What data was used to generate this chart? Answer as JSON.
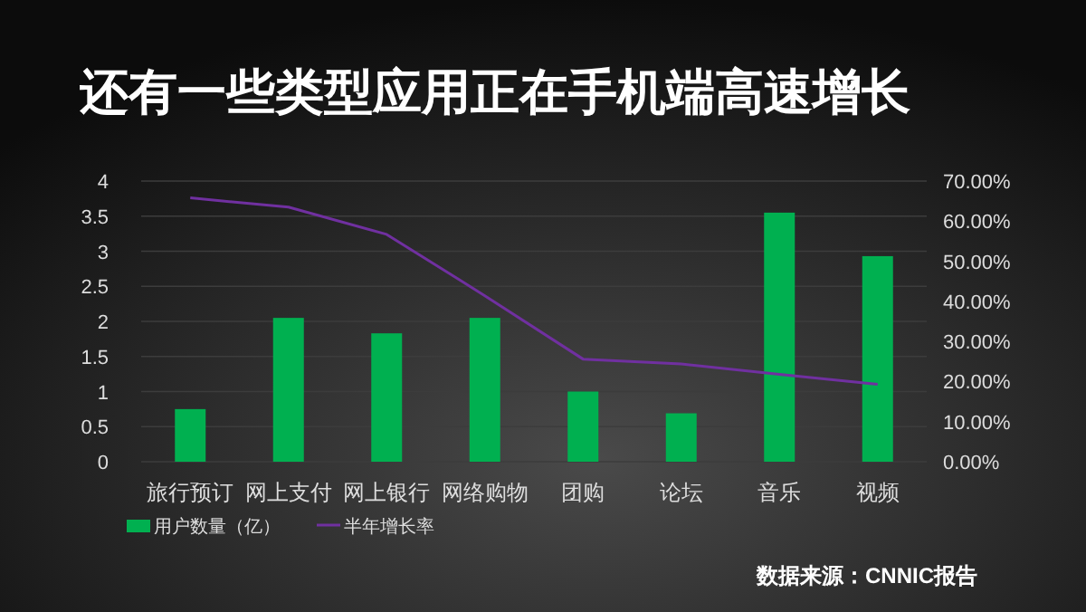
{
  "chart_data": {
    "type": "bar",
    "title": "还有一些类型应用正在手机端高速增长",
    "categories": [
      "旅行预订",
      "网上支付",
      "网上银行",
      "网络购物",
      "团购",
      "论坛",
      "音乐",
      "视频"
    ],
    "series": [
      {
        "name": "用户数量（亿）",
        "color": "#00b050",
        "values": [
          0.75,
          2.05,
          1.83,
          2.05,
          1.0,
          0.69,
          3.55,
          2.93
        ]
      },
      {
        "name": "半年增长率",
        "type": "line",
        "axis": "y2",
        "color": "#7030a0",
        "values": [
          65.8,
          63.5,
          56.7,
          41.4,
          25.6,
          24.4,
          21.8,
          19.3
        ]
      }
    ],
    "ylim": [
      0,
      4
    ],
    "yticks": [
      0,
      0.5,
      1,
      1.5,
      2,
      2.5,
      3,
      3.5,
      4
    ],
    "y2lim": [
      0,
      70
    ],
    "y2ticks": [
      {
        "value": 0,
        "label": "0.00%"
      },
      {
        "value": 10,
        "label": "10.00%"
      },
      {
        "value": 20,
        "label": "20.00%"
      },
      {
        "value": 30,
        "label": "30.00%"
      },
      {
        "value": 40,
        "label": "40.00%"
      },
      {
        "value": 50,
        "label": "50.00%"
      },
      {
        "value": 60,
        "label": "60.00%"
      },
      {
        "value": 70,
        "label": "70.00%"
      }
    ],
    "grid": "y",
    "legend": "bottom left",
    "marker": "none",
    "annotations": [
      "数据来源：CNNIC报告"
    ]
  }
}
